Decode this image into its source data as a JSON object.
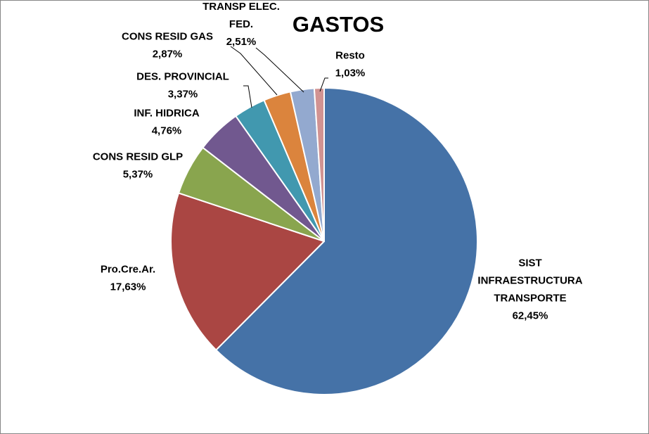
{
  "chart_data": {
    "type": "pie",
    "title": "GASTOS",
    "slices": [
      {
        "name": "SIST INFRAESTRUCTURA TRANSPORTE",
        "label_lines": [
          "SIST",
          "INFRAESTRUCTURA",
          "TRANSPORTE"
        ],
        "value": 62.45,
        "value_label": "62,45%",
        "color": "#4572A7"
      },
      {
        "name": "Pro.Cre.Ar.",
        "label_lines": [
          "Pro.Cre.Ar."
        ],
        "value": 17.63,
        "value_label": "17,63%",
        "color": "#AA4643"
      },
      {
        "name": "CONS RESID GLP",
        "label_lines": [
          "CONS RESID GLP"
        ],
        "value": 5.37,
        "value_label": "5,37%",
        "color": "#89A54E"
      },
      {
        "name": "INF. HIDRICA",
        "label_lines": [
          "INF. HIDRICA"
        ],
        "value": 4.76,
        "value_label": "4,76%",
        "color": "#71588F"
      },
      {
        "name": "DES. PROVINCIAL",
        "label_lines": [
          "DES. PROVINCIAL"
        ],
        "value": 3.37,
        "value_label": "3,37%",
        "color": "#4198AF"
      },
      {
        "name": "CONS RESID GAS",
        "label_lines": [
          "CONS RESID GAS"
        ],
        "value": 2.87,
        "value_label": "2,87%",
        "color": "#DB843D"
      },
      {
        "name": "TRANSP ELEC. FED.",
        "label_lines": [
          "TRANSP ELEC.",
          "FED."
        ],
        "value": 2.51,
        "value_label": "2,51%",
        "color": "#93A9CF"
      },
      {
        "name": "Resto",
        "label_lines": [
          "Resto"
        ],
        "value": 1.03,
        "value_label": "1,03%",
        "color": "#D19392"
      }
    ]
  }
}
